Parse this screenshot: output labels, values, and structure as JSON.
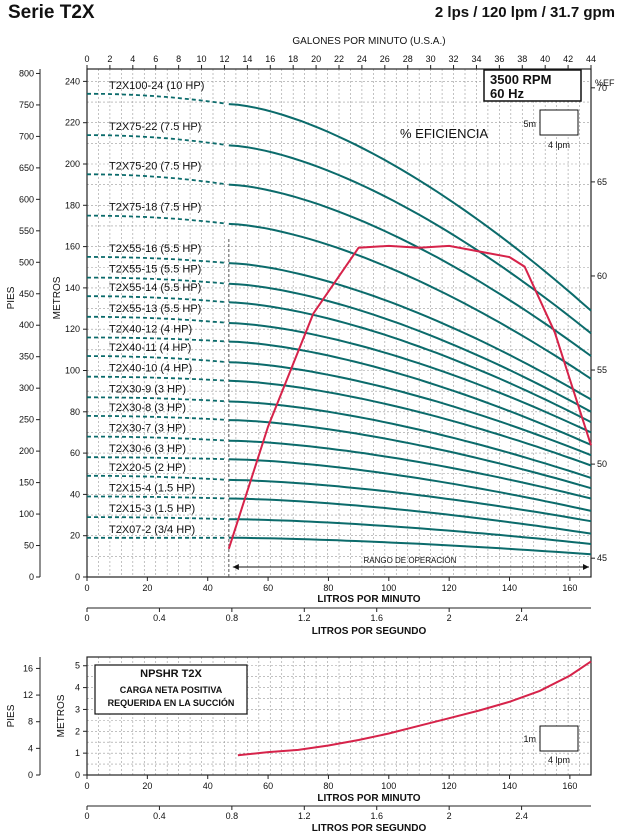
{
  "header": {
    "title": "Serie T2X",
    "subtitle": "2 lps / 120 lpm / 31.7 gpm"
  },
  "colors": {
    "curve": "#0b6b6b",
    "efficiency": "#d6234a",
    "grid": "#9a9a9a",
    "axis": "#222222"
  },
  "chart_data": [
    {
      "type": "line",
      "title": "",
      "rpm_box": [
        "3500 RPM",
        "60 Hz"
      ],
      "efficiency_label": "% EFICIENCIA",
      "scale_box": {
        "y": "5m",
        "x": "4 lpm"
      },
      "x_top": {
        "label": "GALONES POR MINUTO (U.S.A.)",
        "ticks": [
          0,
          2,
          4,
          6,
          8,
          10,
          12,
          14,
          16,
          18,
          20,
          22,
          24,
          26,
          28,
          30,
          32,
          34,
          36,
          38,
          40,
          42,
          44
        ],
        "lim": [
          0,
          44
        ]
      },
      "x_bottom": {
        "label": "LITROS POR MINUTO",
        "ticks": [
          0,
          20,
          40,
          60,
          80,
          100,
          120,
          140,
          160
        ],
        "lim": [
          0,
          167
        ]
      },
      "x_lps": {
        "label": "LITROS POR SEGUNDO",
        "ticks": [
          "0",
          "0.4",
          "0.8",
          "1.2",
          "1.6",
          "2",
          "2.4"
        ],
        "values": [
          0,
          0.4,
          0.8,
          1.2,
          1.6,
          2,
          2.4
        ]
      },
      "y_left_feet": {
        "label": "PIES",
        "ticks": [
          0,
          50,
          100,
          150,
          200,
          250,
          300,
          350,
          400,
          450,
          500,
          550,
          600,
          650,
          700,
          750,
          800
        ]
      },
      "y_meters": {
        "label": "METROS",
        "ticks": [
          0,
          20,
          40,
          60,
          80,
          100,
          120,
          140,
          160,
          180,
          200,
          220,
          240
        ],
        "lim": [
          0,
          246
        ]
      },
      "y_right_eff": {
        "label": "%EF",
        "ticks": [
          45,
          50,
          55,
          60,
          65,
          70
        ],
        "lim": [
          44,
          71
        ]
      },
      "operating_range": {
        "label": "RANGO DE OPERACIÓN",
        "from": 47,
        "to": 167
      },
      "series": [
        {
          "name": "T2X100-24  (10 HP)",
          "shutoff": 234,
          "at47": 229,
          "at167": 129
        },
        {
          "name": "T2X75-22  (7.5 HP)",
          "shutoff": 214,
          "at47": 209,
          "at167": 118
        },
        {
          "name": "T2X75-20  (7.5 HP)",
          "shutoff": 195,
          "at47": 190,
          "at167": 107
        },
        {
          "name": "T2X75-18  (7.5 HP)",
          "shutoff": 175,
          "at47": 171,
          "at167": 96
        },
        {
          "name": "T2X55-16  (5.5 HP)",
          "shutoff": 155,
          "at47": 152,
          "at167": 86
        },
        {
          "name": "T2X55-15  (5.5 HP)",
          "shutoff": 145,
          "at47": 142,
          "at167": 80
        },
        {
          "name": "T2X55-14  (5.5 HP)",
          "shutoff": 136,
          "at47": 133,
          "at167": 75
        },
        {
          "name": "T2X55-13  (5.5 HP)",
          "shutoff": 126,
          "at47": 123,
          "at167": 70
        },
        {
          "name": "T2X40-12  (4 HP)",
          "shutoff": 116,
          "at47": 114,
          "at167": 64
        },
        {
          "name": "T2X40-11  (4 HP)",
          "shutoff": 107,
          "at47": 104,
          "at167": 59
        },
        {
          "name": "T2X40-10  (4 HP)",
          "shutoff": 97,
          "at47": 95,
          "at167": 54
        },
        {
          "name": "T2X30-9  (3 HP)",
          "shutoff": 87,
          "at47": 85,
          "at167": 48
        },
        {
          "name": "T2X30-8  (3 HP)",
          "shutoff": 78,
          "at47": 76,
          "at167": 43
        },
        {
          "name": "T2X30-7  (3 HP)",
          "shutoff": 68,
          "at47": 66,
          "at167": 38
        },
        {
          "name": "T2X30-6  (3 HP)",
          "shutoff": 58,
          "at47": 57,
          "at167": 32
        },
        {
          "name": "T2X20-5  (2 HP)",
          "shutoff": 49,
          "at47": 47,
          "at167": 27
        },
        {
          "name": "T2X15-4  (1.5 HP)",
          "shutoff": 39,
          "at47": 38,
          "at167": 21
        },
        {
          "name": "T2X15-3  (1.5 HP)",
          "shutoff": 29,
          "at47": 28,
          "at167": 16
        },
        {
          "name": "T2X07-2  (3/4 HP)",
          "shutoff": 19,
          "at47": 19,
          "at167": 11
        }
      ],
      "efficiency": {
        "x": [
          47,
          60,
          75,
          90,
          100,
          110,
          120,
          130,
          140,
          145,
          155,
          167
        ],
        "y": [
          45.5,
          52,
          58,
          61.5,
          61.6,
          61.5,
          61.6,
          61.3,
          61,
          60.5,
          57,
          51
        ]
      }
    },
    {
      "type": "line",
      "title": "NPSHR T2X",
      "subtitle": "CARGA NETA POSITIVA REQUERIDA EN LA SUCCIÓN",
      "scale_box": {
        "y": "1m",
        "x": "4 lpm"
      },
      "x_bottom": {
        "label": "LITROS POR MINUTO",
        "ticks": [
          0,
          20,
          40,
          60,
          80,
          100,
          120,
          140,
          160
        ],
        "lim": [
          0,
          167
        ]
      },
      "x_lps": {
        "label": "LITROS POR SEGUNDO",
        "ticks": [
          "0",
          "0.4",
          "0.8",
          "1.2",
          "1.6",
          "2",
          "2.4"
        ],
        "values": [
          0,
          0.4,
          0.8,
          1.2,
          1.6,
          2,
          2.4
        ]
      },
      "y_left_feet": {
        "label": "PIES",
        "ticks": [
          0,
          4,
          8,
          12,
          16
        ]
      },
      "y_meters": {
        "label": "METROS",
        "ticks": [
          0,
          1,
          2,
          3,
          4,
          5
        ],
        "lim": [
          0,
          5.4
        ]
      },
      "series": [
        {
          "name": "NPSHR",
          "x": [
            50,
            60,
            70,
            80,
            90,
            100,
            110,
            120,
            130,
            140,
            150,
            160,
            167
          ],
          "y": [
            0.9,
            1.05,
            1.15,
            1.35,
            1.6,
            1.9,
            2.25,
            2.6,
            2.95,
            3.35,
            3.85,
            4.55,
            5.2
          ]
        }
      ]
    }
  ]
}
